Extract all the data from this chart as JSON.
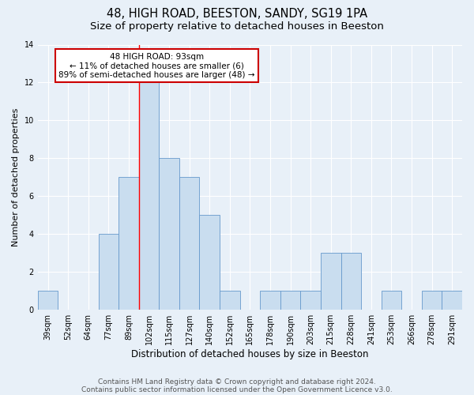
{
  "title1": "48, HIGH ROAD, BEESTON, SANDY, SG19 1PA",
  "title2": "Size of property relative to detached houses in Beeston",
  "xlabel": "Distribution of detached houses by size in Beeston",
  "ylabel": "Number of detached properties",
  "categories": [
    "39sqm",
    "52sqm",
    "64sqm",
    "77sqm",
    "89sqm",
    "102sqm",
    "115sqm",
    "127sqm",
    "140sqm",
    "152sqm",
    "165sqm",
    "178sqm",
    "190sqm",
    "203sqm",
    "215sqm",
    "228sqm",
    "241sqm",
    "253sqm",
    "266sqm",
    "278sqm",
    "291sqm"
  ],
  "values": [
    1,
    0,
    0,
    4,
    7,
    12,
    8,
    7,
    5,
    1,
    0,
    1,
    1,
    1,
    3,
    3,
    0,
    1,
    0,
    1,
    1
  ],
  "bar_color": "#c9ddef",
  "bar_edge_color": "#6699cc",
  "annotation_text": "48 HIGH ROAD: 93sqm\n← 11% of detached houses are smaller (6)\n89% of semi-detached houses are larger (48) →",
  "annotation_box_color": "#ffffff",
  "annotation_box_edge_color": "#cc0000",
  "red_line_x": 4.5,
  "ylim": [
    0,
    14
  ],
  "yticks": [
    0,
    2,
    4,
    6,
    8,
    10,
    12,
    14
  ],
  "footer1": "Contains HM Land Registry data © Crown copyright and database right 2024.",
  "footer2": "Contains public sector information licensed under the Open Government Licence v3.0.",
  "background_color": "#e8f0f8",
  "plot_background_color": "#e8f0f8",
  "grid_color": "#ffffff",
  "title_fontsize": 10.5,
  "subtitle_fontsize": 9.5,
  "axis_label_fontsize": 8,
  "tick_fontsize": 7,
  "annotation_fontsize": 7.5,
  "footer_fontsize": 6.5
}
